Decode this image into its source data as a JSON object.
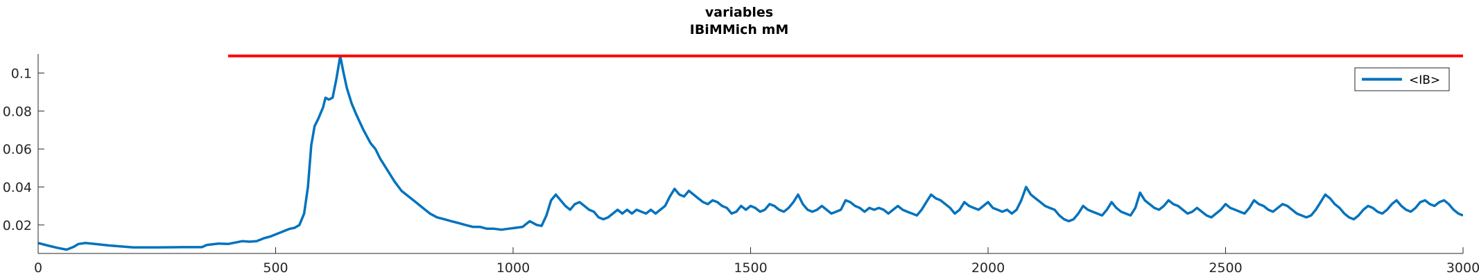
{
  "chart_data": {
    "type": "line",
    "title": "variables",
    "subtitle": "IBiMMich mM",
    "xlabel": "",
    "ylabel": "",
    "xlim": [
      0,
      3000
    ],
    "ylim": [
      0.005,
      0.11
    ],
    "x_ticks": [
      0,
      500,
      1000,
      1500,
      2000,
      2500,
      3000
    ],
    "x_tick_labels": [
      "0",
      "500",
      "1000",
      "1500",
      "2000",
      "2500",
      "3000"
    ],
    "y_ticks": [
      0.02,
      0.04,
      0.06,
      0.08,
      0.1
    ],
    "y_tick_labels": [
      "0.02",
      "0.04",
      "0.06",
      "0.08",
      "0.1"
    ],
    "grid": false,
    "legend_position": "top-right",
    "threshold": {
      "y": 0.109,
      "x_start": 400,
      "x_end": 3000,
      "color": "#ff0000"
    },
    "series": [
      {
        "name": "<IB>",
        "color": "#0072bd",
        "points": [
          [
            0,
            0.0105
          ],
          [
            20,
            0.0092
          ],
          [
            40,
            0.008
          ],
          [
            60,
            0.007
          ],
          [
            75,
            0.0085
          ],
          [
            85,
            0.01
          ],
          [
            100,
            0.0105
          ],
          [
            150,
            0.0092
          ],
          [
            200,
            0.0082
          ],
          [
            250,
            0.0082
          ],
          [
            300,
            0.0083
          ],
          [
            345,
            0.0083
          ],
          [
            355,
            0.0095
          ],
          [
            380,
            0.0102
          ],
          [
            400,
            0.01
          ],
          [
            430,
            0.0115
          ],
          [
            445,
            0.0112
          ],
          [
            460,
            0.0115
          ],
          [
            475,
            0.013
          ],
          [
            490,
            0.014
          ],
          [
            510,
            0.016
          ],
          [
            530,
            0.018
          ],
          [
            540,
            0.0185
          ],
          [
            550,
            0.02
          ],
          [
            560,
            0.026
          ],
          [
            568,
            0.04
          ],
          [
            575,
            0.062
          ],
          [
            582,
            0.072
          ],
          [
            590,
            0.076
          ],
          [
            600,
            0.082
          ],
          [
            605,
            0.087
          ],
          [
            612,
            0.086
          ],
          [
            620,
            0.087
          ],
          [
            628,
            0.097
          ],
          [
            636,
            0.109
          ],
          [
            643,
            0.1
          ],
          [
            650,
            0.092
          ],
          [
            660,
            0.084
          ],
          [
            670,
            0.078
          ],
          [
            685,
            0.07
          ],
          [
            700,
            0.063
          ],
          [
            710,
            0.06
          ],
          [
            720,
            0.055
          ],
          [
            735,
            0.049
          ],
          [
            750,
            0.043
          ],
          [
            765,
            0.038
          ],
          [
            780,
            0.035
          ],
          [
            795,
            0.032
          ],
          [
            810,
            0.029
          ],
          [
            825,
            0.026
          ],
          [
            840,
            0.024
          ],
          [
            855,
            0.023
          ],
          [
            870,
            0.022
          ],
          [
            885,
            0.021
          ],
          [
            900,
            0.02
          ],
          [
            915,
            0.019
          ],
          [
            930,
            0.019
          ],
          [
            945,
            0.018
          ],
          [
            960,
            0.018
          ],
          [
            975,
            0.0175
          ],
          [
            990,
            0.018
          ],
          [
            1005,
            0.0185
          ],
          [
            1020,
            0.019
          ],
          [
            1035,
            0.022
          ],
          [
            1050,
            0.02
          ],
          [
            1060,
            0.0195
          ],
          [
            1070,
            0.025
          ],
          [
            1080,
            0.033
          ],
          [
            1090,
            0.036
          ],
          [
            1100,
            0.033
          ],
          [
            1110,
            0.03
          ],
          [
            1120,
            0.028
          ],
          [
            1130,
            0.031
          ],
          [
            1140,
            0.032
          ],
          [
            1150,
            0.03
          ],
          [
            1160,
            0.028
          ],
          [
            1170,
            0.027
          ],
          [
            1180,
            0.024
          ],
          [
            1190,
            0.023
          ],
          [
            1200,
            0.024
          ],
          [
            1210,
            0.026
          ],
          [
            1220,
            0.028
          ],
          [
            1230,
            0.026
          ],
          [
            1240,
            0.028
          ],
          [
            1250,
            0.026
          ],
          [
            1260,
            0.028
          ],
          [
            1270,
            0.027
          ],
          [
            1280,
            0.026
          ],
          [
            1290,
            0.028
          ],
          [
            1300,
            0.026
          ],
          [
            1310,
            0.028
          ],
          [
            1320,
            0.03
          ],
          [
            1330,
            0.035
          ],
          [
            1340,
            0.039
          ],
          [
            1350,
            0.036
          ],
          [
            1360,
            0.035
          ],
          [
            1370,
            0.038
          ],
          [
            1380,
            0.036
          ],
          [
            1390,
            0.034
          ],
          [
            1400,
            0.032
          ],
          [
            1410,
            0.031
          ],
          [
            1420,
            0.033
          ],
          [
            1430,
            0.032
          ],
          [
            1440,
            0.03
          ],
          [
            1450,
            0.029
          ],
          [
            1460,
            0.026
          ],
          [
            1470,
            0.027
          ],
          [
            1480,
            0.03
          ],
          [
            1490,
            0.028
          ],
          [
            1500,
            0.03
          ],
          [
            1510,
            0.029
          ],
          [
            1520,
            0.027
          ],
          [
            1530,
            0.028
          ],
          [
            1540,
            0.031
          ],
          [
            1550,
            0.03
          ],
          [
            1560,
            0.028
          ],
          [
            1570,
            0.027
          ],
          [
            1580,
            0.029
          ],
          [
            1590,
            0.032
          ],
          [
            1600,
            0.036
          ],
          [
            1610,
            0.031
          ],
          [
            1620,
            0.028
          ],
          [
            1630,
            0.027
          ],
          [
            1640,
            0.028
          ],
          [
            1650,
            0.03
          ],
          [
            1660,
            0.028
          ],
          [
            1670,
            0.026
          ],
          [
            1680,
            0.027
          ],
          [
            1690,
            0.028
          ],
          [
            1700,
            0.033
          ],
          [
            1710,
            0.032
          ],
          [
            1720,
            0.03
          ],
          [
            1730,
            0.029
          ],
          [
            1740,
            0.027
          ],
          [
            1750,
            0.029
          ],
          [
            1760,
            0.028
          ],
          [
            1770,
            0.029
          ],
          [
            1780,
            0.028
          ],
          [
            1790,
            0.026
          ],
          [
            1800,
            0.028
          ],
          [
            1810,
            0.03
          ],
          [
            1820,
            0.028
          ],
          [
            1830,
            0.027
          ],
          [
            1840,
            0.026
          ],
          [
            1850,
            0.025
          ],
          [
            1860,
            0.028
          ],
          [
            1870,
            0.032
          ],
          [
            1880,
            0.036
          ],
          [
            1890,
            0.034
          ],
          [
            1900,
            0.033
          ],
          [
            1910,
            0.031
          ],
          [
            1920,
            0.029
          ],
          [
            1930,
            0.026
          ],
          [
            1940,
            0.028
          ],
          [
            1950,
            0.032
          ],
          [
            1960,
            0.03
          ],
          [
            1970,
            0.029
          ],
          [
            1980,
            0.028
          ],
          [
            1990,
            0.03
          ],
          [
            2000,
            0.032
          ],
          [
            2010,
            0.029
          ],
          [
            2020,
            0.028
          ],
          [
            2030,
            0.027
          ],
          [
            2040,
            0.028
          ],
          [
            2050,
            0.026
          ],
          [
            2060,
            0.028
          ],
          [
            2070,
            0.033
          ],
          [
            2080,
            0.04
          ],
          [
            2090,
            0.036
          ],
          [
            2100,
            0.034
          ],
          [
            2110,
            0.032
          ],
          [
            2120,
            0.03
          ],
          [
            2130,
            0.029
          ],
          [
            2140,
            0.028
          ],
          [
            2150,
            0.025
          ],
          [
            2160,
            0.023
          ],
          [
            2170,
            0.022
          ],
          [
            2180,
            0.023
          ],
          [
            2190,
            0.026
          ],
          [
            2200,
            0.03
          ],
          [
            2210,
            0.028
          ],
          [
            2220,
            0.027
          ],
          [
            2230,
            0.026
          ],
          [
            2240,
            0.025
          ],
          [
            2250,
            0.028
          ],
          [
            2260,
            0.032
          ],
          [
            2270,
            0.029
          ],
          [
            2280,
            0.027
          ],
          [
            2290,
            0.026
          ],
          [
            2300,
            0.025
          ],
          [
            2310,
            0.029
          ],
          [
            2320,
            0.037
          ],
          [
            2330,
            0.033
          ],
          [
            2340,
            0.031
          ],
          [
            2350,
            0.029
          ],
          [
            2360,
            0.028
          ],
          [
            2370,
            0.03
          ],
          [
            2380,
            0.033
          ],
          [
            2390,
            0.031
          ],
          [
            2400,
            0.03
          ],
          [
            2410,
            0.028
          ],
          [
            2420,
            0.026
          ],
          [
            2430,
            0.027
          ],
          [
            2440,
            0.029
          ],
          [
            2450,
            0.027
          ],
          [
            2460,
            0.025
          ],
          [
            2470,
            0.024
          ],
          [
            2480,
            0.026
          ],
          [
            2490,
            0.028
          ],
          [
            2500,
            0.031
          ],
          [
            2510,
            0.029
          ],
          [
            2520,
            0.028
          ],
          [
            2530,
            0.027
          ],
          [
            2540,
            0.026
          ],
          [
            2550,
            0.029
          ],
          [
            2560,
            0.033
          ],
          [
            2570,
            0.031
          ],
          [
            2580,
            0.03
          ],
          [
            2590,
            0.028
          ],
          [
            2600,
            0.027
          ],
          [
            2610,
            0.029
          ],
          [
            2620,
            0.031
          ],
          [
            2630,
            0.03
          ],
          [
            2640,
            0.028
          ],
          [
            2650,
            0.026
          ],
          [
            2660,
            0.025
          ],
          [
            2670,
            0.024
          ],
          [
            2680,
            0.025
          ],
          [
            2690,
            0.028
          ],
          [
            2700,
            0.032
          ],
          [
            2710,
            0.036
          ],
          [
            2720,
            0.034
          ],
          [
            2730,
            0.031
          ],
          [
            2740,
            0.029
          ],
          [
            2750,
            0.026
          ],
          [
            2760,
            0.024
          ],
          [
            2770,
            0.023
          ],
          [
            2780,
            0.025
          ],
          [
            2790,
            0.028
          ],
          [
            2800,
            0.03
          ],
          [
            2810,
            0.029
          ],
          [
            2820,
            0.027
          ],
          [
            2830,
            0.026
          ],
          [
            2840,
            0.028
          ],
          [
            2850,
            0.031
          ],
          [
            2860,
            0.033
          ],
          [
            2870,
            0.03
          ],
          [
            2880,
            0.028
          ],
          [
            2890,
            0.027
          ],
          [
            2900,
            0.029
          ],
          [
            2910,
            0.032
          ],
          [
            2920,
            0.033
          ],
          [
            2930,
            0.031
          ],
          [
            2940,
            0.03
          ],
          [
            2950,
            0.032
          ],
          [
            2960,
            0.033
          ],
          [
            2970,
            0.031
          ],
          [
            2980,
            0.028
          ],
          [
            2990,
            0.026
          ],
          [
            3000,
            0.025
          ]
        ]
      }
    ]
  }
}
